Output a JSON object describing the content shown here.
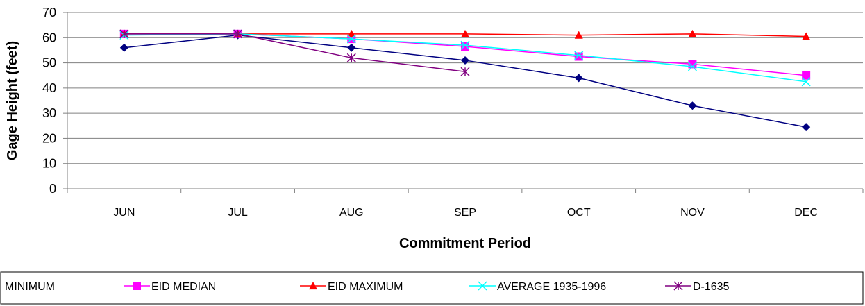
{
  "chart_data": {
    "type": "line",
    "title": "",
    "xlabel": "Commitment Period",
    "ylabel": "Gage Height (feet)",
    "ylim": [
      0,
      70
    ],
    "yticks": [
      0,
      10,
      20,
      30,
      40,
      50,
      60,
      70
    ],
    "categories": [
      "JUN",
      "JUL",
      "AUG",
      "SEP",
      "OCT",
      "NOV",
      "DEC"
    ],
    "grid": "horizontal",
    "legend_position": "bottom",
    "series": [
      {
        "name": "MINIMUM",
        "color": "#000080",
        "marker": "diamond",
        "values": [
          56,
          61,
          56,
          51,
          44,
          33,
          24.5
        ]
      },
      {
        "name": "EID MEDIAN",
        "color": "#ff00ff",
        "marker": "square",
        "values": [
          61.5,
          61.5,
          59.5,
          56.5,
          52.5,
          49.5,
          45
        ]
      },
      {
        "name": "EID MAXIMUM",
        "color": "#ff0000",
        "marker": "triangle",
        "values": [
          61.5,
          61.5,
          61.5,
          61.5,
          61,
          61.5,
          60.5
        ]
      },
      {
        "name": "AVERAGE 1935-1996",
        "color": "#00ffff",
        "marker": "x",
        "values": [
          61,
          61.5,
          59.5,
          57,
          53,
          48.5,
          42.5
        ]
      },
      {
        "name": "D-1635",
        "color": "#800080",
        "marker": "asterisk",
        "values": [
          61.5,
          61.5,
          52,
          46.5,
          null,
          null,
          null
        ]
      }
    ]
  }
}
